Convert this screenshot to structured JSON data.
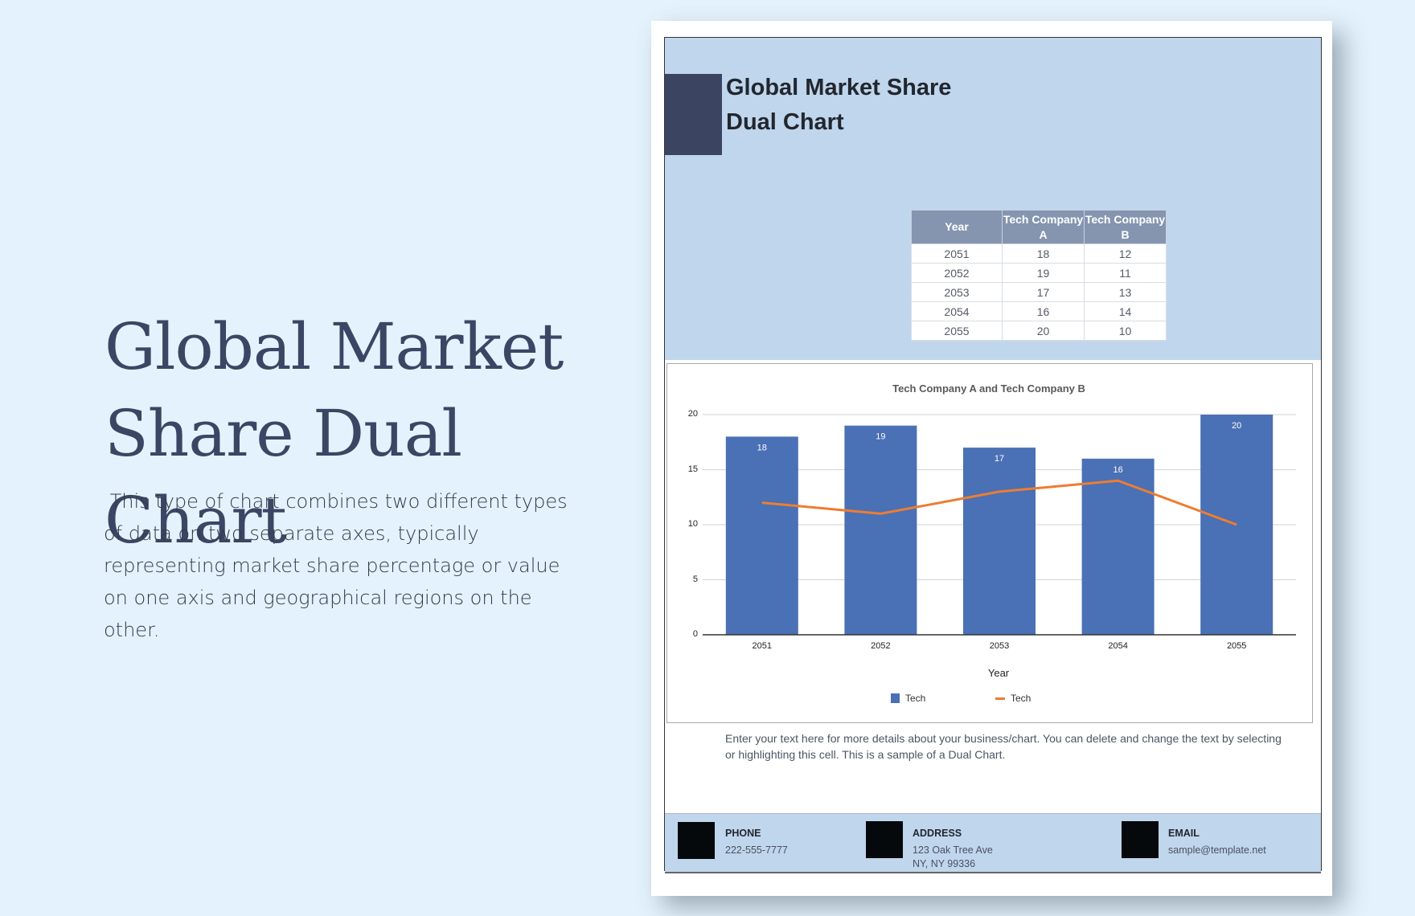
{
  "hero": {
    "title": "Global Market Share Dual Chart",
    "description": " This type of chart combines two different types of data on two separate axes, typically representing market share percentage or value on one axis and geographical regions on the other."
  },
  "document": {
    "title_line1": "Global Market Share",
    "title_line2": "Dual Chart",
    "colors": {
      "band": "#c0d6ed",
      "accent_square": "#3b4562",
      "table_header": "#8595b0",
      "bar": "#4a70b5",
      "line": "#ed7d31"
    },
    "table": {
      "headers": [
        "Year",
        "Tech Company A",
        "Tech Company B"
      ],
      "rows": [
        [
          "2051",
          "18",
          "12"
        ],
        [
          "2052",
          "19",
          "11"
        ],
        [
          "2053",
          "17",
          "13"
        ],
        [
          "2054",
          "16",
          "14"
        ],
        [
          "2055",
          "20",
          "10"
        ]
      ]
    },
    "note": "Enter your text here for more details about your business/chart. You can delete and change the text by selecting or highlighting this cell. This is a sample of a Dual Chart.",
    "footer": {
      "phone": {
        "label": "PHONE",
        "value": "222-555-7777"
      },
      "address": {
        "label": "ADDRESS",
        "line1": "123 Oak Tree Ave",
        "line2": "NY, NY 99336"
      },
      "email": {
        "label": "EMAIL",
        "value": "sample@template.net"
      }
    }
  },
  "chart_data": {
    "type": "bar",
    "title": "Tech Company A and Tech Company B",
    "xlabel": "Year",
    "ylabel": "",
    "categories": [
      "2051",
      "2052",
      "2053",
      "2054",
      "2055"
    ],
    "series": [
      {
        "name": "Tech",
        "kind": "bar",
        "color": "#4a70b5",
        "values": [
          18,
          19,
          17,
          16,
          20
        ],
        "data_labels": true
      },
      {
        "name": "Tech",
        "kind": "line",
        "color": "#ed7d31",
        "values": [
          12,
          11,
          13,
          14,
          10
        ],
        "data_labels": false
      }
    ],
    "yticks": [
      "0",
      "5",
      "10",
      "15",
      "20"
    ],
    "ylim": [
      0,
      20
    ],
    "grid": true,
    "legend_position": "bottom",
    "legend": [
      "Tech",
      "Tech"
    ]
  }
}
